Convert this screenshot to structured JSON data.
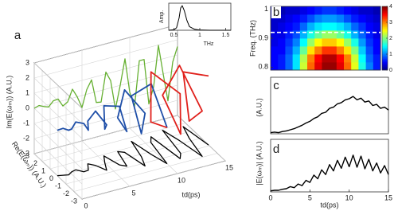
{
  "chart_data": [
    {
      "type": "line3d",
      "label": "a",
      "xlabel": "td(ps)",
      "ylabel": "Re(E(ωₘ)) (A.U.)",
      "zlabel": "Im(E(ωₘ)) (A.U.)",
      "xlim": [
        0,
        15
      ],
      "xticks": [
        0,
        5,
        10,
        15
      ],
      "ylim": [
        -3,
        3
      ],
      "yticks": [
        -3,
        -2,
        -1,
        0,
        1,
        2,
        3
      ],
      "zlim": [
        -3,
        3
      ],
      "zticks": [
        -3,
        -2,
        -1,
        0,
        1,
        2,
        3
      ],
      "projection_colors": {
        "z": "#66b032",
        "y": "#000000"
      },
      "series": [
        {
          "color": "#1f4fa8",
          "t": [
            0,
            0.5,
            1,
            1.5,
            2,
            2.5,
            3,
            3.5,
            4,
            4.5,
            5,
            5.5,
            6,
            6.5,
            7,
            7.5,
            8,
            8.5,
            9,
            9.5,
            10
          ],
          "re": [
            0.1,
            -0.02,
            -0.14,
            0.1,
            0.19,
            -0.23,
            -0.2,
            0.47,
            0.1,
            -0.7,
            0.14,
            0.85,
            -0.5,
            -0.84,
            0.92,
            0.65,
            -1.32,
            -0.26,
            1.6,
            -0.3,
            -1.69
          ],
          "im": [
            0,
            0.1,
            -0.05,
            -0.17,
            0.16,
            0.19,
            -0.35,
            -0.17,
            0.59,
            0,
            -0.79,
            0.31,
            0.87,
            -0.71,
            -0.77,
            1.13,
            0.48,
            -1.48,
            0,
            1.67,
            -0.62
          ]
        },
        {
          "color": "#e0201b",
          "t": [
            10,
            10.5,
            11,
            11.5,
            12,
            12.5,
            13,
            13.5,
            14,
            14.5,
            15
          ],
          "re": [
            -1.69,
            0.95,
            1.53,
            -1.53,
            -1.0,
            1.88,
            0.35,
            -1.9,
            0.33,
            1.69,
            -0.9
          ],
          "im": [
            -0.62,
            -1.65,
            1.29,
            1.29,
            -1.73,
            -0.68,
            1.97,
            0,
            -1.87,
            0.62,
            1.56
          ]
        }
      ]
    },
    {
      "type": "line",
      "xlabel": "THz",
      "ylabel": "Amp.",
      "xlim": [
        0.4,
        1.6
      ],
      "xticks": [
        0.5,
        1,
        1.5
      ],
      "ylim": [
        0,
        1.1
      ],
      "color": "#000000",
      "x": [
        0.4,
        0.5,
        0.55,
        0.6,
        0.63,
        0.66,
        0.7,
        0.75,
        0.8,
        0.9,
        1.0,
        1.2,
        1.6
      ],
      "values": [
        0,
        0.02,
        0.1,
        0.5,
        0.9,
        1.0,
        0.8,
        0.4,
        0.15,
        0.04,
        0.01,
        0,
        0
      ]
    },
    {
      "type": "heatmap",
      "label": "b",
      "ylabel": "Freq. (THz)",
      "xlim": [
        0,
        15
      ],
      "ylim": [
        0.79,
        1.01
      ],
      "yticks": [
        0.8,
        0.9,
        1
      ],
      "clim": [
        0,
        4
      ],
      "cticks": [
        0,
        1,
        2,
        3,
        4
      ],
      "marker": 0.92,
      "z": [
        [
          0.5,
          0.6,
          0.9,
          1.4,
          2.3,
          3.1,
          3.6,
          3.9,
          3.9,
          3.6,
          3.1,
          2.4,
          1.6,
          1.0,
          0.6
        ],
        [
          0.5,
          0.6,
          0.9,
          1.4,
          2.2,
          3.0,
          3.5,
          3.8,
          3.8,
          3.5,
          3.0,
          2.3,
          1.5,
          0.9,
          0.6
        ],
        [
          0.5,
          0.5,
          0.8,
          1.2,
          1.9,
          2.6,
          3.0,
          3.3,
          3.3,
          3.0,
          2.6,
          2.0,
          1.3,
          0.8,
          0.5
        ],
        [
          0.4,
          0.5,
          0.7,
          1.0,
          1.5,
          2.1,
          2.5,
          2.7,
          2.7,
          2.5,
          2.1,
          1.6,
          1.1,
          0.7,
          0.5
        ],
        [
          0.4,
          0.4,
          0.6,
          0.8,
          1.2,
          1.6,
          1.9,
          2.1,
          2.1,
          1.9,
          1.6,
          1.2,
          0.9,
          0.6,
          0.4
        ],
        [
          0.3,
          0.4,
          0.5,
          0.6,
          0.9,
          1.2,
          1.4,
          1.5,
          1.5,
          1.4,
          1.2,
          0.9,
          0.7,
          0.5,
          0.4
        ],
        [
          0.3,
          0.3,
          0.4,
          0.5,
          0.6,
          0.8,
          1.0,
          1.1,
          1.1,
          1.0,
          0.8,
          0.6,
          0.5,
          0.4,
          0.3
        ],
        [
          0.2,
          0.2,
          0.3,
          0.3,
          0.4,
          0.5,
          0.6,
          0.7,
          0.7,
          0.6,
          0.5,
          0.4,
          0.3,
          0.3,
          0.2
        ]
      ]
    },
    {
      "type": "line",
      "label": "c",
      "ylabel": "(A.U.)",
      "xlim": [
        0,
        15
      ],
      "ylim": [
        0,
        1
      ],
      "color": "#000000",
      "x": [
        0,
        0.5,
        1,
        1.5,
        2,
        2.5,
        3,
        3.5,
        4,
        4.5,
        5,
        5.5,
        6,
        6.5,
        7,
        7.5,
        8,
        8.5,
        9,
        9.5,
        10,
        10.5,
        11,
        11.5,
        12,
        12.5,
        13,
        13.5,
        14,
        14.5,
        15
      ],
      "values": [
        0.02,
        0.03,
        0.02,
        0.04,
        0.05,
        0.07,
        0.09,
        0.12,
        0.15,
        0.19,
        0.22,
        0.27,
        0.3,
        0.36,
        0.38,
        0.45,
        0.47,
        0.53,
        0.55,
        0.6,
        0.62,
        0.66,
        0.6,
        0.63,
        0.56,
        0.58,
        0.5,
        0.52,
        0.45,
        0.47,
        0.42
      ]
    },
    {
      "type": "line",
      "label": "d",
      "ylabel": "|E(ωₘ)| (A.U.)",
      "xlabel": "td(ps)",
      "xlim": [
        0,
        15
      ],
      "xticks": [
        0,
        5,
        10,
        15
      ],
      "ylim": [
        0,
        1
      ],
      "color": "#000000",
      "x": [
        0,
        0.5,
        1,
        1.5,
        2,
        2.5,
        3,
        3.5,
        4,
        4.5,
        5,
        5.5,
        6,
        6.5,
        7,
        7.5,
        8,
        8.5,
        9,
        9.5,
        10,
        10.5,
        11,
        11.5,
        12,
        12.5,
        13,
        13.5,
        14,
        14.5,
        15
      ],
      "values": [
        0.02,
        0.03,
        0.03,
        0.05,
        0.06,
        0.1,
        0.08,
        0.15,
        0.12,
        0.22,
        0.18,
        0.32,
        0.25,
        0.42,
        0.33,
        0.52,
        0.4,
        0.6,
        0.45,
        0.66,
        0.48,
        0.7,
        0.47,
        0.68,
        0.44,
        0.62,
        0.4,
        0.55,
        0.36,
        0.5,
        0.33
      ]
    }
  ]
}
